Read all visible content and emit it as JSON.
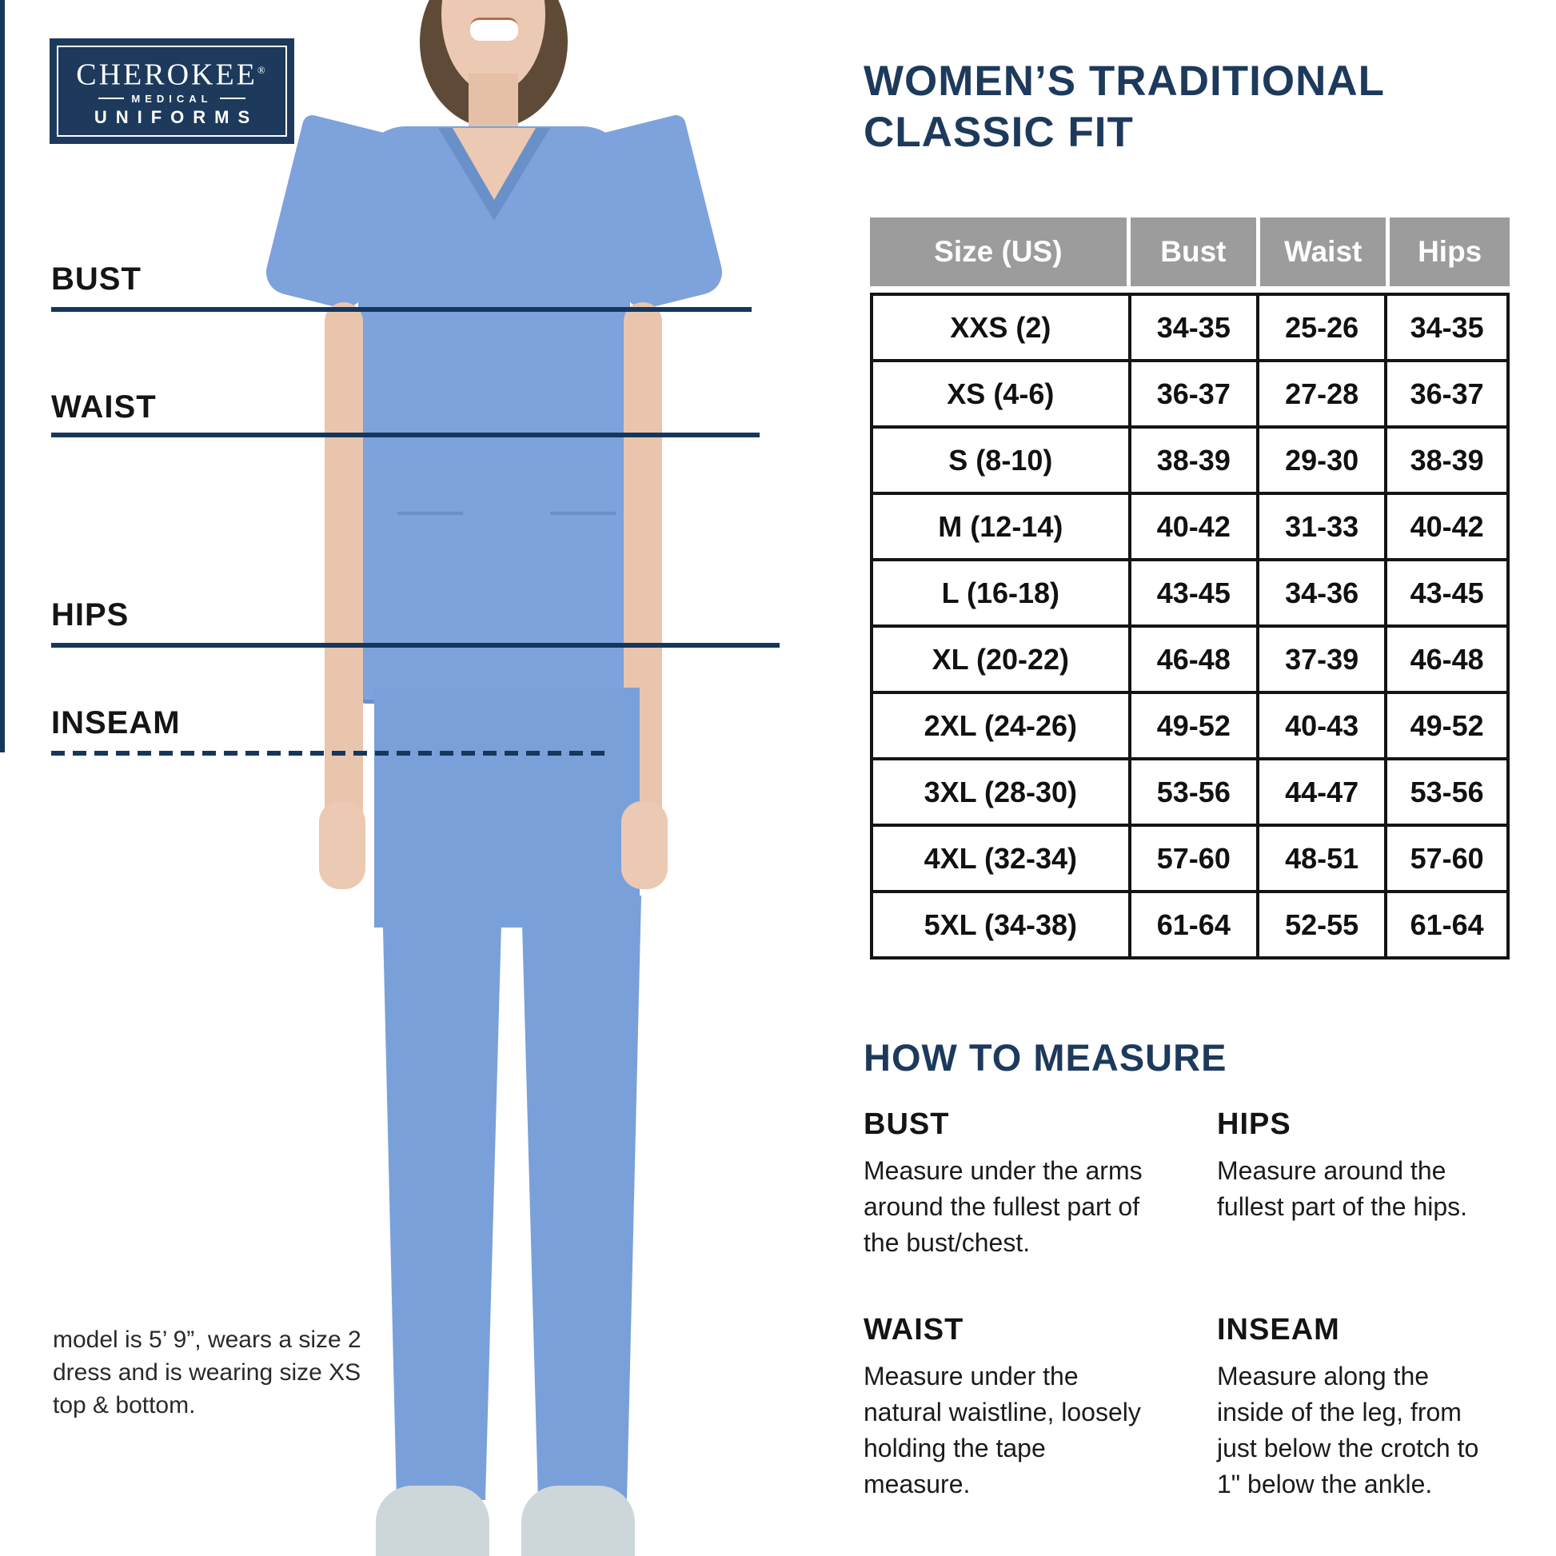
{
  "logo": {
    "brand": "CHEROKEE",
    "registered": "®",
    "medical": "MEDICAL",
    "uniforms": "UNIFORMS"
  },
  "title": {
    "line1": "WOMEN’S TRADITIONAL",
    "line2": "CLASSIC FIT"
  },
  "figure_labels": {
    "bust": "BUST",
    "waist": "WAIST",
    "hips": "HIPS",
    "inseam": "INSEAM"
  },
  "size_table": {
    "headers": [
      "Size (US)",
      "Bust",
      "Waist",
      "Hips"
    ],
    "rows": [
      [
        "XXS (2)",
        "34-35",
        "25-26",
        "34-35"
      ],
      [
        "XS (4-6)",
        "36-37",
        "27-28",
        "36-37"
      ],
      [
        "S (8-10)",
        "38-39",
        "29-30",
        "38-39"
      ],
      [
        "M (12-14)",
        "40-42",
        "31-33",
        "40-42"
      ],
      [
        "L (16-18)",
        "43-45",
        "34-36",
        "43-45"
      ],
      [
        "XL (20-22)",
        "46-48",
        "37-39",
        "46-48"
      ],
      [
        "2XL (24-26)",
        "49-52",
        "40-43",
        "49-52"
      ],
      [
        "3XL (28-30)",
        "53-56",
        "44-47",
        "53-56"
      ],
      [
        "4XL (32-34)",
        "57-60",
        "48-51",
        "57-60"
      ],
      [
        "5XL (34-38)",
        "61-64",
        "52-55",
        "61-64"
      ]
    ]
  },
  "how_to": {
    "heading": "HOW TO MEASURE",
    "bust": {
      "label": "BUST",
      "text": "Measure under the arms around the fullest part of the bust/chest."
    },
    "waist": {
      "label": "WAIST",
      "text": "Measure under the natural waistline, loosely holding the tape measure."
    },
    "hips": {
      "label": "HIPS",
      "text": "Measure around the fullest part of the hips."
    },
    "inseam": {
      "label": "INSEAM",
      "text": "Measure along the inside of the leg, from just below the crotch to 1\" below the ankle."
    }
  },
  "model_note": "model is 5’ 9”, wears a size 2 dress and is wearing size XS top & bottom.",
  "colors": {
    "navy": "#1d3a5c",
    "line_navy": "#16375c",
    "header_gray": "#9c9c9c",
    "table_border_black": "#141414",
    "scrub_blue": "#7da2dc",
    "background": "#ffffff"
  }
}
